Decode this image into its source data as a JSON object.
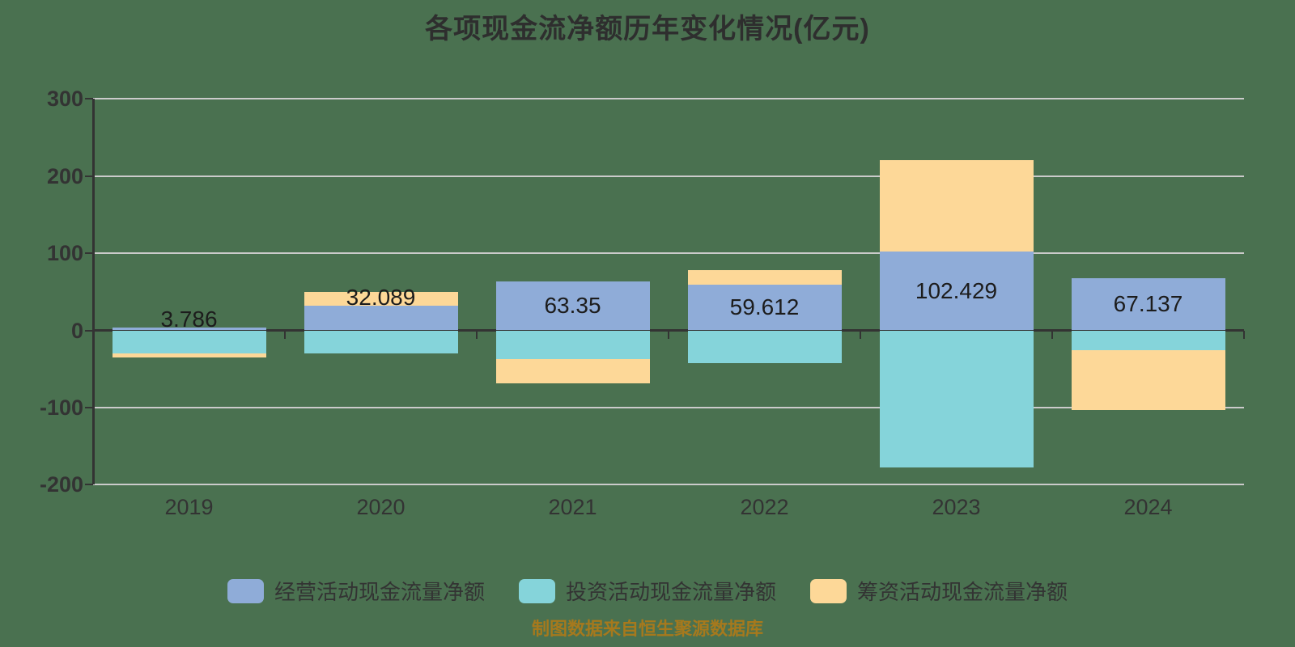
{
  "page": {
    "background_color": "#4A7150",
    "title": "各项现金流净额历年变化情况(亿元)",
    "source_note": "制图数据来自恒生聚源数据库",
    "source_note_color": "#A6791D"
  },
  "chart_data": {
    "type": "bar",
    "stacked": true,
    "title": "各项现金流净额历年变化情况(亿元)",
    "categories": [
      "2019",
      "2020",
      "2021",
      "2022",
      "2023",
      "2024"
    ],
    "series": [
      {
        "name": "经营活动现金流量净额",
        "color": "#8FACD8",
        "values": [
          3.786,
          32.089,
          63.35,
          59.612,
          102.429,
          67.137
        ],
        "labels": [
          "3.786",
          "32.089",
          "63.35",
          "59.612",
          "102.429",
          "67.137"
        ]
      },
      {
        "name": "投资活动现金流量净额",
        "color": "#85D4DA",
        "values": [
          -29.5,
          -30,
          -37,
          -42,
          -178,
          -26
        ]
      },
      {
        "name": "筹资活动现金流量净额",
        "color": "#FDD898",
        "values": [
          -6,
          18,
          -32,
          18,
          118,
          -77
        ]
      }
    ],
    "ylim": [
      -200,
      300
    ],
    "y_ticks": [
      300,
      200,
      100,
      0,
      -100,
      -200
    ],
    "grid": true,
    "legend_position": "bottom",
    "axis_color": "#333333",
    "grid_color": "#CBCBCB",
    "label_color": "#333333"
  }
}
